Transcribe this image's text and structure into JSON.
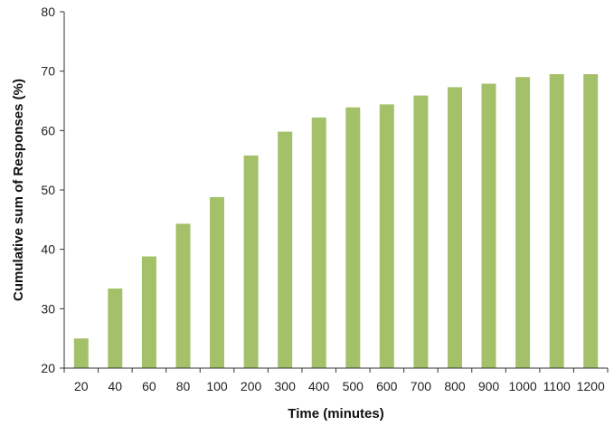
{
  "chart_data": {
    "type": "bar",
    "title": "",
    "xlabel": "Time (minutes)",
    "ylabel": "Cumulative sum of Responses (%)",
    "categories": [
      "20",
      "40",
      "60",
      "80",
      "100",
      "200",
      "300",
      "400",
      "500",
      "600",
      "700",
      "800",
      "900",
      "1000",
      "1100",
      "1200"
    ],
    "values": [
      25,
      33.4,
      38.8,
      44.3,
      48.8,
      55.8,
      59.8,
      62.2,
      63.9,
      64.4,
      65.9,
      67.3,
      67.9,
      69.0,
      69.5,
      69.5
    ],
    "ylim": [
      20,
      80
    ],
    "yticks": [
      20,
      30,
      40,
      50,
      60,
      70,
      80
    ],
    "grid": false,
    "legend": "none",
    "bar_color": "#a4c16a",
    "axis_color": "#333333"
  }
}
